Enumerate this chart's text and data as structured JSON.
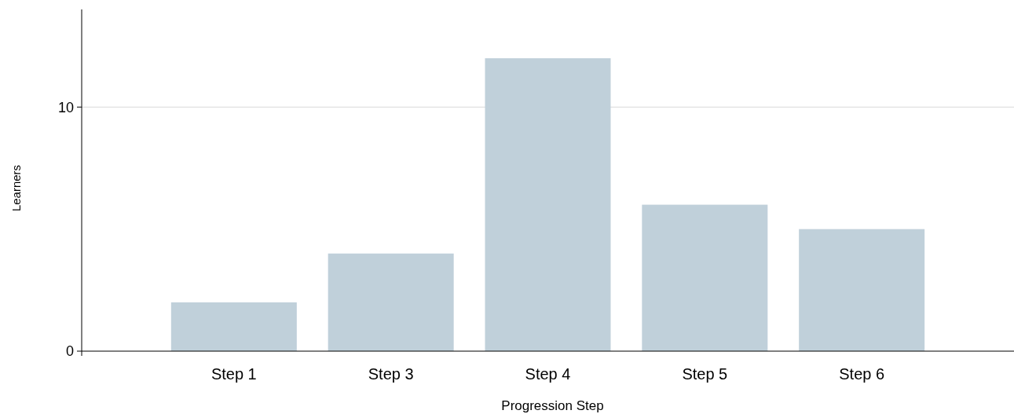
{
  "chart_data": {
    "type": "bar",
    "xlabel": "Progression Step",
    "ylabel": "Learners",
    "categories": [
      "Step 1",
      "Step 3",
      "Step 4",
      "Step 5",
      "Step 6"
    ],
    "values": [
      2,
      4,
      12,
      6,
      5
    ],
    "color": "#c0d0da",
    "ylim": [
      0,
      14
    ],
    "yticks": [
      0,
      10
    ],
    "grid": "y"
  }
}
